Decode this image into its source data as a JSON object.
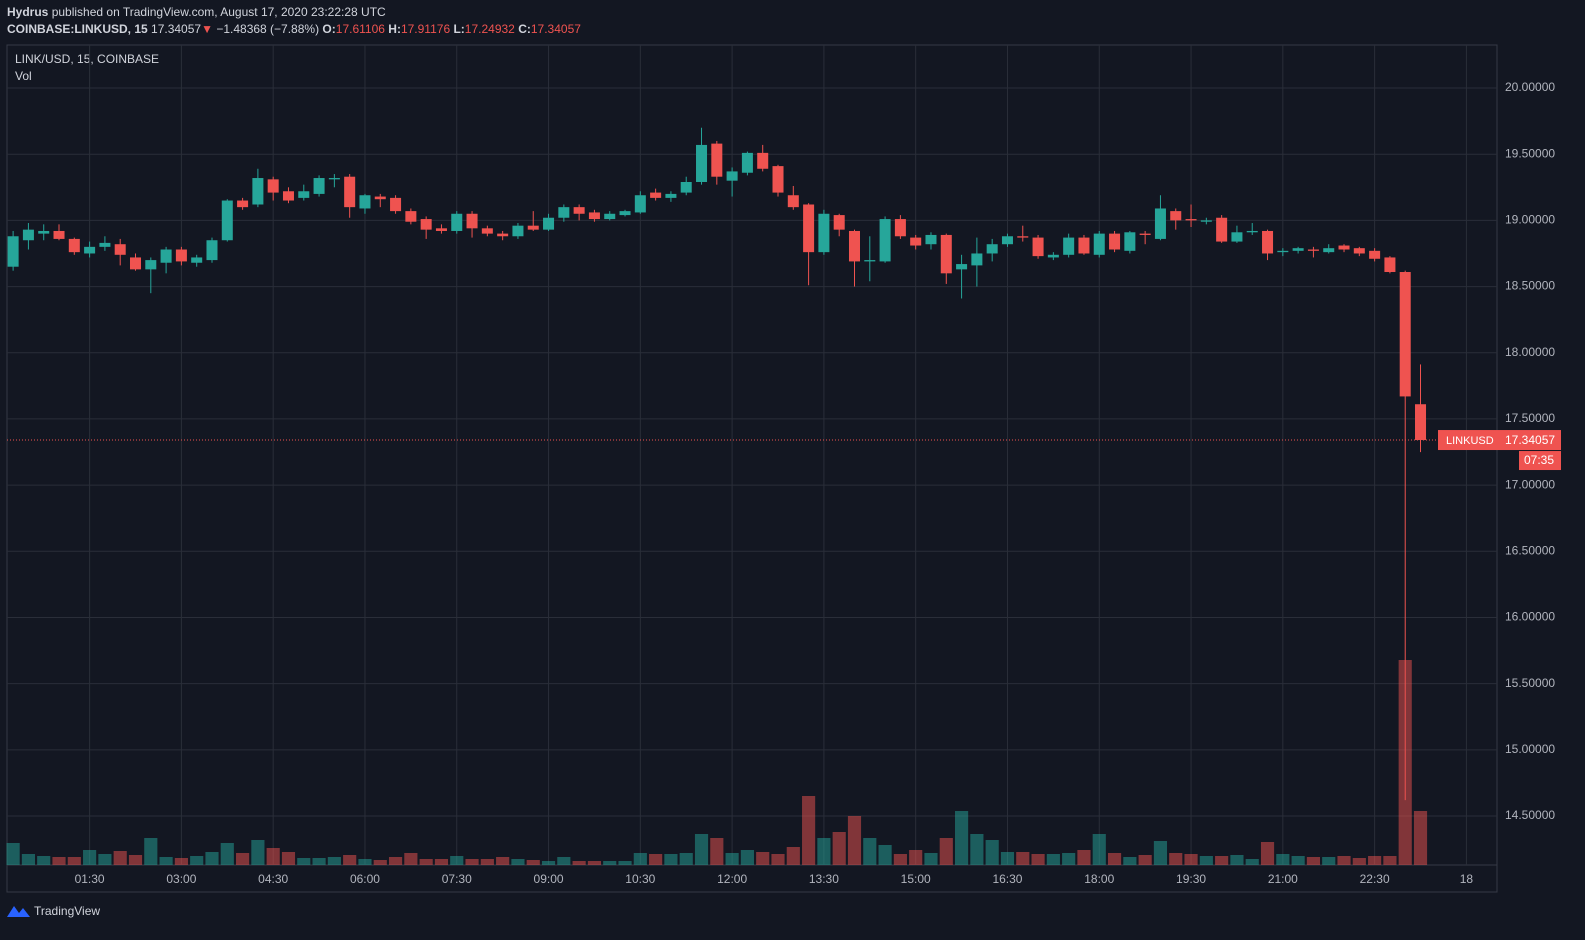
{
  "header": {
    "author": "Hydrus",
    "published": "published on TradingView.com, August 17, 2020 23:22:28 UTC",
    "symbol": "COINBASE:LINKUSD, 15",
    "last": "17.34057",
    "arrow": "▼",
    "change": "−1.48368 (−7.88%)",
    "o_label": "O:",
    "o": "17.61106",
    "h_label": "H:",
    "h": "17.91176",
    "l_label": "L:",
    "l": "17.24932",
    "c_label": "C:",
    "c": "17.34057"
  },
  "chart_data": {
    "type": "candlestick",
    "title": "LINK/USD, 15, COINBASE",
    "volume_label": "Vol",
    "up_color": "#26a69a",
    "down_color": "#ef5350",
    "grid": true,
    "x": [
      15,
      30,
      45,
      60,
      75,
      90,
      105,
      120,
      135,
      150,
      165,
      180,
      195,
      210,
      225,
      240,
      255,
      270,
      285,
      300,
      315,
      330,
      345,
      360,
      375,
      390,
      405,
      420,
      435,
      450,
      465,
      480,
      495,
      510,
      525,
      540,
      555,
      570,
      585,
      600,
      615,
      630,
      645,
      660,
      675,
      690,
      705,
      720,
      735,
      750,
      765,
      780,
      795,
      810,
      825,
      840,
      855,
      870,
      885,
      900,
      915,
      930,
      945,
      960,
      975,
      990,
      1005,
      1020,
      1035,
      1050,
      1065,
      1080,
      1095,
      1110,
      1125,
      1140,
      1155,
      1170,
      1185,
      1200,
      1215,
      1230,
      1245,
      1260,
      1275,
      1290,
      1305,
      1320,
      1335,
      1350,
      1365,
      1380,
      1395
    ],
    "open": [
      18.65,
      18.85,
      18.9,
      18.92,
      18.86,
      18.75,
      18.8,
      18.82,
      18.72,
      18.63,
      18.68,
      18.78,
      18.68,
      18.7,
      18.85,
      19.15,
      19.12,
      19.31,
      19.22,
      19.17,
      19.2,
      19.31,
      19.33,
      19.09,
      19.18,
      19.17,
      19.07,
      19.01,
      18.94,
      18.92,
      19.05,
      18.94,
      18.9,
      18.88,
      18.96,
      18.93,
      19.02,
      19.1,
      19.06,
      19.01,
      19.04,
      19.06,
      19.21,
      19.17,
      19.21,
      19.29,
      19.58,
      19.3,
      19.36,
      19.51,
      19.41,
      19.19,
      19.12,
      18.76,
      19.04,
      18.92,
      18.69,
      18.69,
      19.01,
      18.87,
      18.82,
      18.89,
      18.63,
      18.66,
      18.75,
      18.82,
      18.88,
      18.87,
      18.72,
      18.74,
      18.87,
      18.74,
      18.9,
      18.77,
      18.9,
      18.86,
      19.07,
      19.01,
      18.99,
      19.02,
      18.84,
      18.91,
      18.92,
      18.76,
      18.77,
      18.78,
      18.76,
      18.81,
      18.79,
      18.77,
      18.72,
      18.61,
      17.61106
    ],
    "high": [
      18.92,
      18.98,
      18.97,
      18.97,
      18.87,
      18.84,
      18.88,
      18.86,
      18.75,
      18.72,
      18.8,
      18.8,
      18.74,
      18.87,
      19.16,
      19.17,
      19.39,
      19.33,
      19.25,
      19.27,
      19.34,
      19.35,
      19.35,
      19.2,
      19.2,
      19.19,
      19.09,
      19.03,
      18.97,
      19.07,
      19.07,
      18.96,
      18.92,
      18.98,
      19.07,
      19.05,
      19.12,
      19.12,
      19.08,
      19.07,
      19.08,
      19.22,
      19.24,
      19.22,
      19.33,
      19.7,
      19.6,
      19.4,
      19.52,
      19.57,
      19.42,
      19.26,
      19.13,
      19.08,
      19.05,
      18.93,
      18.88,
      19.03,
      19.04,
      18.89,
      18.91,
      18.9,
      18.74,
      18.87,
      18.86,
      18.9,
      18.96,
      18.89,
      18.76,
      18.9,
      18.89,
      18.92,
      18.92,
      18.92,
      18.92,
      19.19,
      19.09,
      19.12,
      19.02,
      19.04,
      18.96,
      18.98,
      18.93,
      18.79,
      18.8,
      18.8,
      18.82,
      18.82,
      18.8,
      18.79,
      18.73,
      18.62,
      17.91176
    ],
    "low": [
      18.62,
      18.78,
      18.85,
      18.85,
      18.74,
      18.72,
      18.77,
      18.66,
      18.62,
      18.45,
      18.6,
      18.66,
      18.65,
      18.68,
      18.84,
      19.08,
      19.1,
      19.15,
      19.13,
      19.15,
      19.18,
      19.25,
      19.02,
      19.05,
      19.1,
      19.05,
      18.97,
      18.86,
      18.9,
      18.9,
      18.87,
      18.88,
      18.85,
      18.86,
      18.92,
      18.92,
      18.99,
      19.0,
      18.99,
      19.0,
      19.03,
      19.05,
      19.15,
      19.14,
      19.19,
      19.27,
      19.27,
      19.18,
      19.34,
      19.37,
      19.18,
      19.08,
      18.51,
      18.74,
      18.88,
      18.5,
      18.54,
      18.68,
      18.86,
      18.78,
      18.78,
      18.52,
      18.41,
      18.5,
      18.69,
      18.8,
      18.84,
      18.71,
      18.7,
      18.72,
      18.74,
      18.72,
      18.76,
      18.75,
      18.82,
      18.85,
      18.93,
      18.95,
      18.97,
      18.83,
      18.83,
      18.89,
      18.7,
      18.73,
      18.75,
      18.72,
      18.75,
      18.76,
      18.73,
      18.69,
      18.6,
      14.62,
      17.24932
    ],
    "close": [
      18.88,
      18.93,
      18.92,
      18.86,
      18.76,
      18.8,
      18.83,
      18.74,
      18.63,
      18.7,
      18.78,
      18.69,
      18.72,
      18.85,
      19.15,
      19.1,
      19.32,
      19.21,
      19.15,
      19.22,
      19.32,
      19.32,
      19.1,
      19.19,
      19.16,
      19.07,
      18.99,
      18.93,
      18.92,
      19.05,
      18.94,
      18.9,
      18.88,
      18.96,
      18.93,
      19.02,
      19.1,
      19.05,
      19.01,
      19.05,
      19.07,
      19.19,
      19.17,
      19.2,
      19.29,
      19.57,
      19.33,
      19.37,
      19.51,
      19.39,
      19.21,
      19.1,
      18.76,
      19.05,
      18.93,
      18.69,
      18.7,
      19.01,
      18.88,
      18.81,
      18.89,
      18.6,
      18.67,
      18.75,
      18.82,
      18.88,
      18.87,
      18.73,
      18.74,
      18.87,
      18.75,
      18.9,
      18.78,
      18.91,
      18.89,
      19.09,
      19.0,
      19.0,
      19.0,
      18.84,
      18.91,
      18.92,
      18.75,
      18.77,
      18.79,
      18.77,
      18.79,
      18.78,
      18.75,
      18.71,
      18.61,
      17.67,
      17.34057
    ],
    "volume": [
      22,
      11,
      9,
      8,
      8,
      15,
      11,
      14,
      10,
      27,
      8,
      7,
      9,
      13,
      22,
      12,
      25,
      17,
      13,
      7,
      7,
      8,
      10,
      6,
      5,
      8,
      12,
      6,
      6,
      9,
      6,
      6,
      8,
      6,
      5,
      4,
      8,
      4,
      4,
      4,
      4,
      12,
      11,
      11,
      12,
      31,
      27,
      12,
      15,
      13,
      11,
      18,
      69,
      27,
      33,
      49,
      27,
      20,
      11,
      15,
      12,
      27,
      54,
      31,
      25,
      13,
      13,
      11,
      11,
      12,
      15,
      31,
      12,
      8,
      10,
      24,
      12,
      11,
      9,
      9,
      10,
      6,
      23,
      11,
      9,
      8,
      8,
      9,
      7,
      9,
      9,
      205,
      54
    ],
    "xlim": [
      9,
      1470
    ],
    "xticks": [
      {
        "value": 90,
        "label": "01:30"
      },
      {
        "value": 180,
        "label": "03:00"
      },
      {
        "value": 270,
        "label": "04:30"
      },
      {
        "value": 360,
        "label": "06:00"
      },
      {
        "value": 450,
        "label": "07:30"
      },
      {
        "value": 540,
        "label": "09:00"
      },
      {
        "value": 630,
        "label": "10:30"
      },
      {
        "value": 720,
        "label": "12:00"
      },
      {
        "value": 810,
        "label": "13:30"
      },
      {
        "value": 900,
        "label": "15:00"
      },
      {
        "value": 990,
        "label": "16:30"
      },
      {
        "value": 1080,
        "label": "18:00"
      },
      {
        "value": 1170,
        "label": "19:30"
      },
      {
        "value": 1260,
        "label": "21:00"
      },
      {
        "value": 1350,
        "label": "22:30"
      },
      {
        "value": 1440,
        "label": "18"
      }
    ],
    "ylim": [
      14.13,
      20.325
    ],
    "yticks": [
      {
        "value": 14.5,
        "label": "14.50000"
      },
      {
        "value": 15,
        "label": "15.00000"
      },
      {
        "value": 15.5,
        "label": "15.50000"
      },
      {
        "value": 16,
        "label": "16.00000"
      },
      {
        "value": 16.5,
        "label": "16.50000"
      },
      {
        "value": 17,
        "label": "17.00000"
      },
      {
        "value": 17.5,
        "label": "17.50000"
      },
      {
        "value": 18,
        "label": "18.00000"
      },
      {
        "value": 18.5,
        "label": "18.50000"
      },
      {
        "value": 19,
        "label": "19.00000"
      },
      {
        "value": 19.5,
        "label": "19.50000"
      },
      {
        "value": 20,
        "label": "20.00000"
      }
    ],
    "price_tag": {
      "symbol": "LINKUSD",
      "value": 17.34057,
      "countdown": "07:35"
    }
  },
  "footer": "TradingView"
}
